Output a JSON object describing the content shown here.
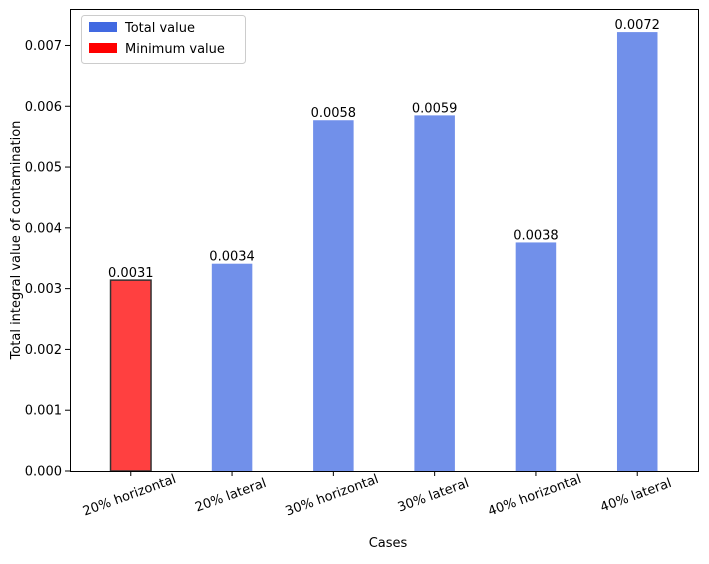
{
  "chart_data": {
    "type": "bar",
    "title": "",
    "xlabel": "Cases",
    "ylabel": "Total integral value of contamination",
    "categories": [
      "20% horizontal",
      "20% lateral",
      "30% horizontal",
      "30% lateral",
      "40% horizontal",
      "40% lateral"
    ],
    "values": [
      0.00314,
      0.00341,
      0.00577,
      0.00585,
      0.00376,
      0.00722
    ],
    "data_labels": [
      "0.0031",
      "0.0034",
      "0.0058",
      "0.0059",
      "0.0038",
      "0.0072"
    ],
    "highlight_index": 0,
    "ylim": [
      0,
      0.0076
    ],
    "yticks": [
      0,
      0.001,
      0.002,
      0.003,
      0.004,
      0.005,
      0.006,
      0.007
    ],
    "ytick_labels": [
      "0.000",
      "0.001",
      "0.002",
      "0.003",
      "0.004",
      "0.005",
      "0.006",
      "0.007"
    ],
    "grid": false,
    "legend": {
      "placement": "top-left",
      "entries": [
        {
          "label": "Total value",
          "color": "#4169e1"
        },
        {
          "label": "Minimum value",
          "color": "#ff0000"
        }
      ]
    },
    "colors": {
      "bar": "#7190ea",
      "highlight_bar": "#ff4040",
      "highlight_edge": "#333333"
    }
  }
}
